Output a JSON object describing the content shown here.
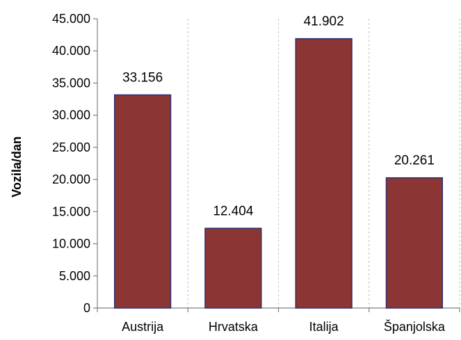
{
  "chart_data": {
    "type": "bar",
    "categories": [
      "Austrija",
      "Hrvatska",
      "Italija",
      "Španjolska"
    ],
    "values": [
      33156,
      12404,
      41902,
      20261
    ],
    "value_labels": [
      "33.156",
      "12.404",
      "41.902",
      "20.261"
    ],
    "title": "",
    "xlabel": "",
    "ylabel": "Vozila/dan",
    "ylim": [
      0,
      45000
    ],
    "yticks": [
      0,
      5000,
      10000,
      15000,
      20000,
      25000,
      30000,
      35000,
      40000,
      45000
    ],
    "ytick_labels": [
      "0",
      "5.000",
      "10.000",
      "15.000",
      "20.000",
      "25.000",
      "30.000",
      "35.000",
      "40.000",
      "45.000"
    ],
    "grid": {
      "horizontal": false,
      "vertical": true,
      "style": "dashed"
    },
    "legend": "none",
    "colors": {
      "bar_fill": "#8b3535",
      "bar_stroke": "#2e2e6e",
      "axis": "#7f7f7f",
      "grid": "#bfbfbf"
    }
  }
}
